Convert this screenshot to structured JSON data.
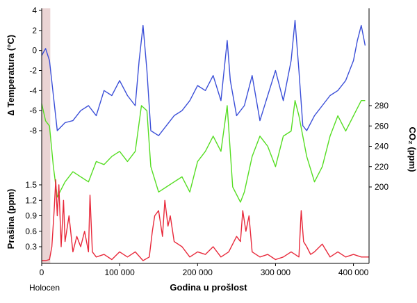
{
  "chart_data": {
    "type": "line",
    "xlabel": "Godina u prošlost",
    "x_range": [
      0,
      420000
    ],
    "x_ticks": [
      0,
      100000,
      200000,
      300000,
      400000
    ],
    "x_tick_labels": [
      "0",
      "100 000",
      "200 000",
      "300 000",
      "400 000"
    ],
    "annotation": "Holocen",
    "holocene_band": [
      0,
      11000
    ],
    "series": [
      {
        "key": "temperature",
        "color": "#3b4fd8",
        "ylabel": "∆ Temperatura (°C)",
        "y_ticks": [
          4,
          2,
          0,
          -2,
          -4,
          -6,
          -8
        ],
        "y_tick_labels": [
          "4",
          "2",
          "0",
          "-2",
          "-4",
          "-6",
          "-8"
        ],
        "x": [
          0,
          5000,
          10000,
          15000,
          20000,
          30000,
          40000,
          50000,
          60000,
          70000,
          80000,
          90000,
          100000,
          110000,
          120000,
          125000,
          130000,
          135000,
          140000,
          150000,
          160000,
          170000,
          180000,
          190000,
          200000,
          210000,
          220000,
          230000,
          238000,
          242000,
          250000,
          260000,
          270000,
          280000,
          290000,
          300000,
          310000,
          320000,
          325000,
          330000,
          335000,
          340000,
          350000,
          360000,
          370000,
          380000,
          390000,
          400000,
          405000,
          410000,
          415000
        ],
        "y": [
          -0.5,
          0.2,
          -1.0,
          -4.5,
          -8.0,
          -7.2,
          -7.0,
          -6.0,
          -5.5,
          -6.5,
          -4.0,
          -4.5,
          -3.0,
          -4.5,
          -5.5,
          -1.0,
          2.5,
          -2.0,
          -8.0,
          -8.5,
          -7.5,
          -6.5,
          -6.0,
          -5.0,
          -3.5,
          -4.0,
          -2.5,
          -5.0,
          1.0,
          -3.0,
          -6.5,
          -5.5,
          -2.5,
          -7.0,
          -4.5,
          -2.0,
          -5.0,
          -1.0,
          3.0,
          -2.0,
          -7.5,
          -8.0,
          -6.5,
          -5.5,
          -4.5,
          -4.0,
          -3.0,
          -1.0,
          1.0,
          2.5,
          0.5
        ]
      },
      {
        "key": "co2",
        "color": "#55dd22",
        "ylabel": "CO₂ (ppm)",
        "y_ticks": [
          280,
          260,
          240,
          220,
          200
        ],
        "y_tick_labels": [
          "280",
          "260",
          "240",
          "220",
          "200"
        ],
        "x": [
          0,
          5000,
          10000,
          15000,
          20000,
          30000,
          40000,
          50000,
          60000,
          70000,
          80000,
          90000,
          100000,
          110000,
          120000,
          128000,
          135000,
          140000,
          150000,
          160000,
          170000,
          180000,
          190000,
          200000,
          210000,
          220000,
          230000,
          238000,
          245000,
          255000,
          260000,
          270000,
          280000,
          290000,
          300000,
          310000,
          320000,
          325000,
          330000,
          340000,
          350000,
          360000,
          370000,
          380000,
          390000,
          400000,
          410000,
          415000
        ],
        "y": [
          282,
          265,
          260,
          220,
          190,
          205,
          215,
          210,
          205,
          225,
          222,
          230,
          235,
          225,
          235,
          280,
          275,
          220,
          195,
          200,
          205,
          210,
          195,
          225,
          235,
          250,
          235,
          280,
          200,
          185,
          195,
          230,
          250,
          240,
          220,
          250,
          255,
          285,
          270,
          230,
          205,
          220,
          250,
          270,
          255,
          270,
          285,
          285
        ]
      },
      {
        "key": "dust",
        "color": "#e8283a",
        "ylabel": "Prašina (ppm)",
        "y_ticks": [
          1.5,
          1.2,
          0.9,
          0.6,
          0.3
        ],
        "y_tick_labels": [
          "1.5",
          "1.2",
          "0.9",
          "0.6",
          "0.3"
        ],
        "x": [
          0,
          5000,
          10000,
          13000,
          16000,
          18000,
          20000,
          22000,
          25000,
          28000,
          30000,
          35000,
          40000,
          45000,
          50000,
          55000,
          60000,
          62000,
          65000,
          70000,
          80000,
          90000,
          100000,
          110000,
          120000,
          130000,
          138000,
          142000,
          145000,
          150000,
          155000,
          158000,
          162000,
          165000,
          170000,
          180000,
          190000,
          200000,
          210000,
          220000,
          230000,
          240000,
          250000,
          255000,
          258000,
          262000,
          266000,
          270000,
          280000,
          290000,
          300000,
          310000,
          320000,
          325000,
          330000,
          333000,
          336000,
          340000,
          345000,
          350000,
          360000,
          370000,
          380000,
          390000,
          400000,
          410000,
          420000
        ],
        "y": [
          0.03,
          0.03,
          0.05,
          0.3,
          1.0,
          1.6,
          0.9,
          1.5,
          0.3,
          1.2,
          0.4,
          0.9,
          0.2,
          0.5,
          0.3,
          0.6,
          0.2,
          1.3,
          0.2,
          0.1,
          0.15,
          0.05,
          0.2,
          0.1,
          0.2,
          0.03,
          0.1,
          0.6,
          0.9,
          1.0,
          0.5,
          1.2,
          0.7,
          0.9,
          0.4,
          0.3,
          0.1,
          0.2,
          0.15,
          0.3,
          0.1,
          0.2,
          0.5,
          0.4,
          1.0,
          0.6,
          0.9,
          0.2,
          0.1,
          0.15,
          0.05,
          0.1,
          0.2,
          0.15,
          0.1,
          1.0,
          0.4,
          0.3,
          0.15,
          0.2,
          0.35,
          0.1,
          0.2,
          0.1,
          0.15,
          0.1,
          0.1
        ]
      }
    ]
  }
}
